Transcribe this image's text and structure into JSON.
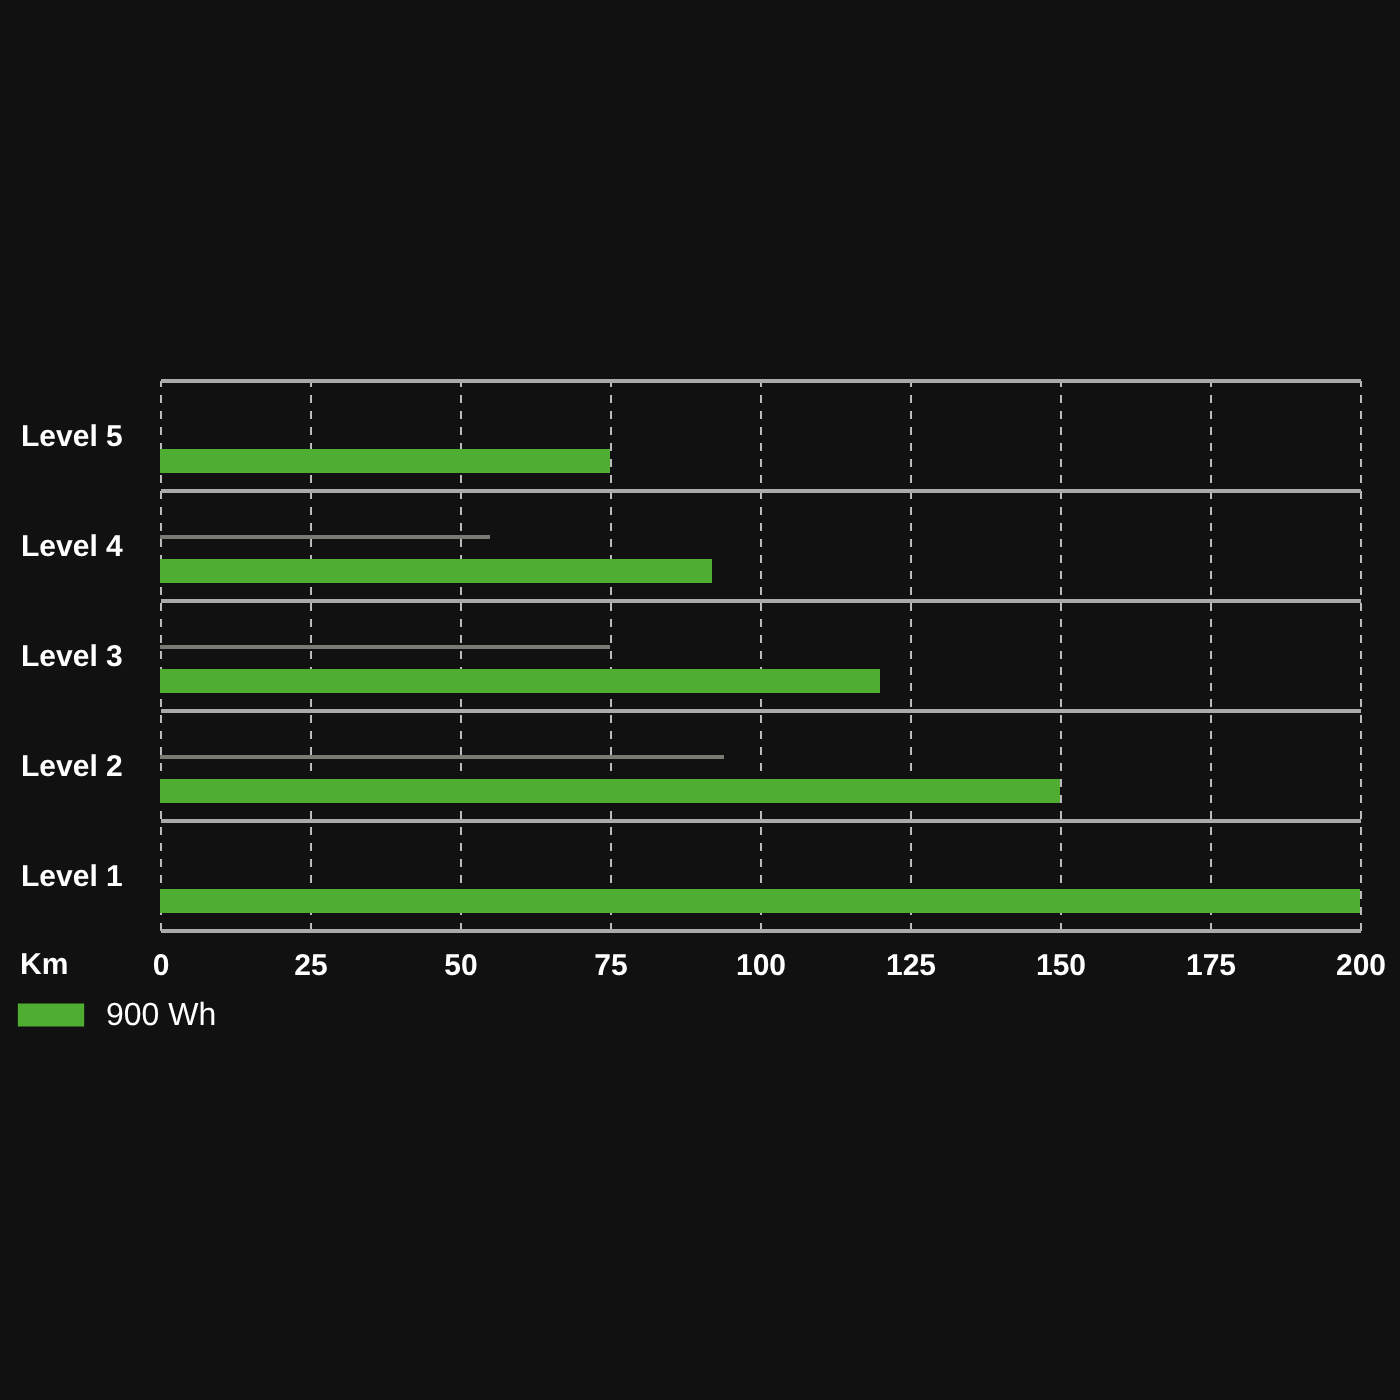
{
  "chart_data": {
    "type": "bar",
    "orientation": "horizontal",
    "categories": [
      "Level 5",
      "Level 4",
      "Level 3",
      "Level 2",
      "Level 1"
    ],
    "xlabel": "Km",
    "xlim": [
      0,
      200
    ],
    "xticks": [
      0,
      25,
      50,
      75,
      100,
      125,
      150,
      175,
      200
    ],
    "grid": true,
    "legend": "bottom left",
    "series": [
      {
        "color": "#7a7a72",
        "values": [
          null,
          55,
          75,
          94,
          null
        ]
      },
      {
        "name": "900 Wh",
        "color": "#4fae32",
        "values": [
          75,
          92,
          120,
          150,
          200
        ]
      }
    ]
  }
}
